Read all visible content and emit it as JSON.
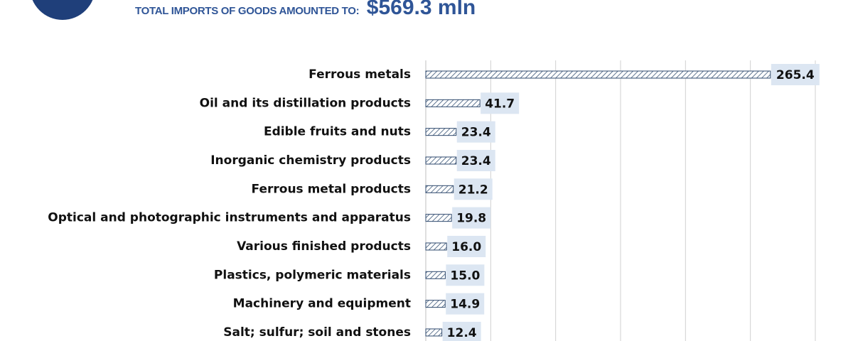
{
  "header": {
    "label": "TOTAL IMPORTS OF GOODS AMOUNTED TO:",
    "value": "$569.3 mln",
    "accent": "#1f3f7a"
  },
  "chart_data": {
    "type": "bar",
    "orientation": "horizontal",
    "title": "",
    "xlabel": "",
    "ylabel": "",
    "categories": [
      "Ferrous metals",
      "Oil and its distillation products",
      "Edible fruits and nuts",
      "Inorganic chemistry products",
      "Ferrous metal products",
      "Optical and photographic instruments and apparatus",
      "Various finished products",
      "Plastics, polymeric materials",
      "Machinery and equipment",
      "Salt; sulfur; soil and stones"
    ],
    "values": [
      265.4,
      41.7,
      23.4,
      23.4,
      21.2,
      19.8,
      16.0,
      15.0,
      14.9,
      12.4
    ],
    "value_labels": [
      "265.4",
      "41.7",
      "23.4",
      "23.4",
      "21.2",
      "19.8",
      "16.0",
      "15.0",
      "14.9",
      "12.4"
    ],
    "xlim": [
      0,
      300
    ],
    "grid": "vertical",
    "legend": "none",
    "colors": {
      "bar_stroke": "#2f4a6e",
      "hatch": "#3a5677",
      "label_box": "#dce6f2",
      "grid": "#d0d0d0"
    }
  }
}
